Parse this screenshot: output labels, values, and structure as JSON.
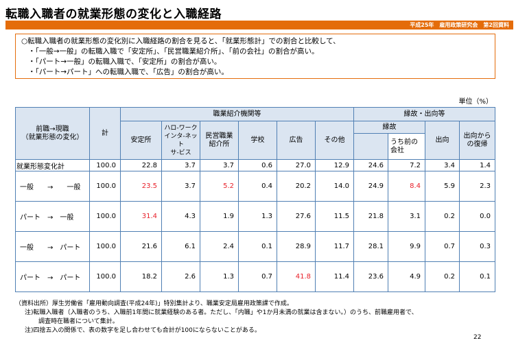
{
  "title": "転職入職者の就業形態の変化と入職経路",
  "header_note": "平成25年　雇用政策研究会　第2回資料",
  "summary": {
    "lead": "○転職入職者の就業形態の変化別に入職経路の割合を見ると、「就業形態計」での割合と比較して、",
    "points": [
      "・「一般→一般」の転職入職で「安定所」、「民営職業紹介所」、「前の会社」の割合が高い。",
      "・「パート→一般」の転職入職で、「安定所」の割合が高い。",
      "・「パート→パート」への転職入職で、「広告」の割合が高い。"
    ]
  },
  "unit": "単位（%）",
  "table": {
    "header": {
      "row_label": "前職→現職\n（就業形態の変化）",
      "total": "計",
      "group_agency": "職業紹介機関等",
      "group_connection": "縁故・出向等",
      "sub_connection": "縁故",
      "columns": [
        "安定所",
        "ハロ-ワーク\nインタ-ネット\nサ-ビス",
        "民営職業\n紹介所",
        "学校",
        "広告",
        "その他",
        "",
        "うち前の\n会社",
        "出向",
        "出向から\nの復帰"
      ]
    },
    "rows": [
      {
        "label": "就業形態変化計",
        "values": [
          "100.0",
          "22.8",
          "3.7",
          "3.7",
          "0.6",
          "27.0",
          "12.9",
          "24.6",
          "7.2",
          "3.4",
          "1.4"
        ],
        "red": []
      },
      {
        "label": "一般　　→　　一般",
        "values": [
          "100.0",
          "23.5",
          "3.7",
          "5.2",
          "0.4",
          "20.2",
          "14.0",
          "24.9",
          "8.4",
          "5.9",
          "2.3"
        ],
        "red": [
          1,
          3,
          8
        ]
      },
      {
        "label": "パート　→　一般",
        "values": [
          "100.0",
          "31.4",
          "4.3",
          "1.9",
          "1.3",
          "27.6",
          "11.5",
          "21.8",
          "3.1",
          "0.2",
          "0.0"
        ],
        "red": [
          1
        ]
      },
      {
        "label": "一般　　→　パート",
        "values": [
          "100.0",
          "21.6",
          "6.1",
          "2.4",
          "0.1",
          "28.9",
          "11.7",
          "28.1",
          "9.9",
          "0.7",
          "0.3"
        ],
        "red": []
      },
      {
        "label": "パート　→　パート",
        "values": [
          "100.0",
          "18.2",
          "2.6",
          "1.3",
          "0.7",
          "41.8",
          "11.4",
          "23.6",
          "4.9",
          "0.2",
          "0.1"
        ],
        "red": [
          5
        ]
      }
    ]
  },
  "notes": [
    "（資料出所）厚生労働省「雇用動向調査(平成24年)」特別集計より、職業安定局雇用政策課で作成。",
    "注)転職入職者（入職者のうち、入職前1年間に就業経験のある者。ただし、「内職」や1か月未満の就業は含まない。）のうち、前職雇用者で、",
    "調査時在職者について集計。",
    "注)四捨五入の関係で、表の数字を足し合わせても合計が100にならないことがある。"
  ],
  "page_number": "22",
  "colors": {
    "accent": "#e46c0a",
    "header_fill": "#dbe5f1",
    "border": "#4f7fb3",
    "highlight": "#e8202a"
  }
}
